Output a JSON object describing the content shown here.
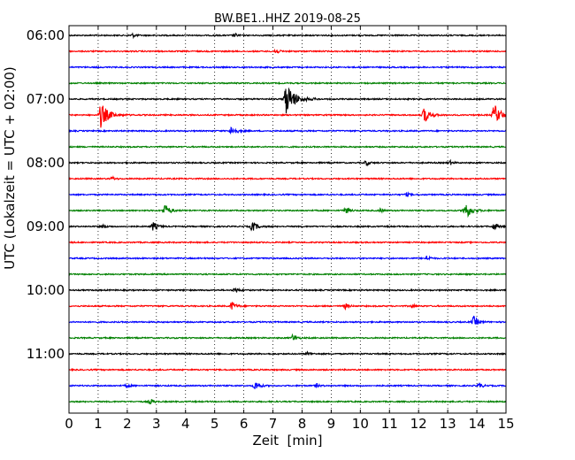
{
  "chart_data": {
    "type": "line",
    "title": "BW.BE1..HHZ 2019-08-25",
    "xlabel": "Zeit  [min]",
    "ylabel": "UTC (Lokalzeit = UTC + 02:00)",
    "xlim": [
      0,
      15
    ],
    "x_ticks": [
      "0",
      "1",
      "2",
      "3",
      "4",
      "5",
      "6",
      "7",
      "8",
      "9",
      "10",
      "11",
      "12",
      "13",
      "14",
      "15"
    ],
    "y_tick_labels": [
      "06:00",
      "07:00",
      "08:00",
      "09:00",
      "10:00",
      "11:00"
    ],
    "grid": "vertical dotted",
    "trace_interval_minutes": 15,
    "colors": [
      "#000000",
      "#ff0000",
      "#0000ff",
      "#008000"
    ],
    "traces": [
      {
        "start": "06:00",
        "color": "#000000",
        "events": [
          [
            2.2,
            2
          ],
          [
            5.7,
            2
          ]
        ]
      },
      {
        "start": "06:15",
        "color": "#ff0000",
        "events": [
          [
            7.1,
            3
          ]
        ]
      },
      {
        "start": "06:30",
        "color": "#0000ff",
        "events": []
      },
      {
        "start": "06:45",
        "color": "#008000",
        "events": []
      },
      {
        "start": "07:00",
        "color": "#000000",
        "events": [
          [
            7.45,
            18
          ]
        ]
      },
      {
        "start": "07:15",
        "color": "#ff0000",
        "events": [
          [
            1.1,
            14
          ],
          [
            12.2,
            9
          ],
          [
            14.6,
            12
          ]
        ]
      },
      {
        "start": "07:30",
        "color": "#0000ff",
        "events": [
          [
            5.6,
            6
          ]
        ]
      },
      {
        "start": "07:45",
        "color": "#008000",
        "events": []
      },
      {
        "start": "08:00",
        "color": "#000000",
        "events": [
          [
            10.2,
            3
          ],
          [
            13.1,
            2
          ]
        ]
      },
      {
        "start": "08:15",
        "color": "#ff0000",
        "events": [
          [
            1.5,
            2
          ]
        ]
      },
      {
        "start": "08:30",
        "color": "#0000ff",
        "events": [
          [
            11.6,
            2
          ]
        ]
      },
      {
        "start": "08:45",
        "color": "#008000",
        "events": [
          [
            3.3,
            7
          ],
          [
            9.5,
            4
          ],
          [
            10.7,
            2
          ],
          [
            13.6,
            10
          ]
        ]
      },
      {
        "start": "09:00",
        "color": "#000000",
        "events": [
          [
            1.2,
            2
          ],
          [
            2.9,
            5
          ],
          [
            6.3,
            6
          ],
          [
            14.6,
            4
          ]
        ]
      },
      {
        "start": "09:15",
        "color": "#ff0000",
        "events": []
      },
      {
        "start": "09:30",
        "color": "#0000ff",
        "events": [
          [
            12.3,
            3
          ]
        ]
      },
      {
        "start": "09:45",
        "color": "#008000",
        "events": []
      },
      {
        "start": "10:00",
        "color": "#000000",
        "events": [
          [
            5.7,
            3
          ]
        ]
      },
      {
        "start": "10:15",
        "color": "#ff0000",
        "events": [
          [
            5.6,
            5
          ],
          [
            9.5,
            3
          ],
          [
            11.8,
            2
          ]
        ]
      },
      {
        "start": "10:30",
        "color": "#0000ff",
        "events": [
          [
            13.9,
            6
          ]
        ]
      },
      {
        "start": "10:45",
        "color": "#008000",
        "events": [
          [
            7.7,
            4
          ]
        ]
      },
      {
        "start": "11:00",
        "color": "#000000",
        "events": [
          [
            8.2,
            2
          ]
        ]
      },
      {
        "start": "11:15",
        "color": "#ff0000",
        "events": []
      },
      {
        "start": "11:30",
        "color": "#0000ff",
        "events": [
          [
            6.4,
            5
          ],
          [
            2.0,
            2
          ],
          [
            8.5,
            2
          ],
          [
            14.1,
            3
          ]
        ]
      },
      {
        "start": "11:45",
        "color": "#008000",
        "events": [
          [
            2.8,
            3
          ]
        ]
      }
    ]
  }
}
